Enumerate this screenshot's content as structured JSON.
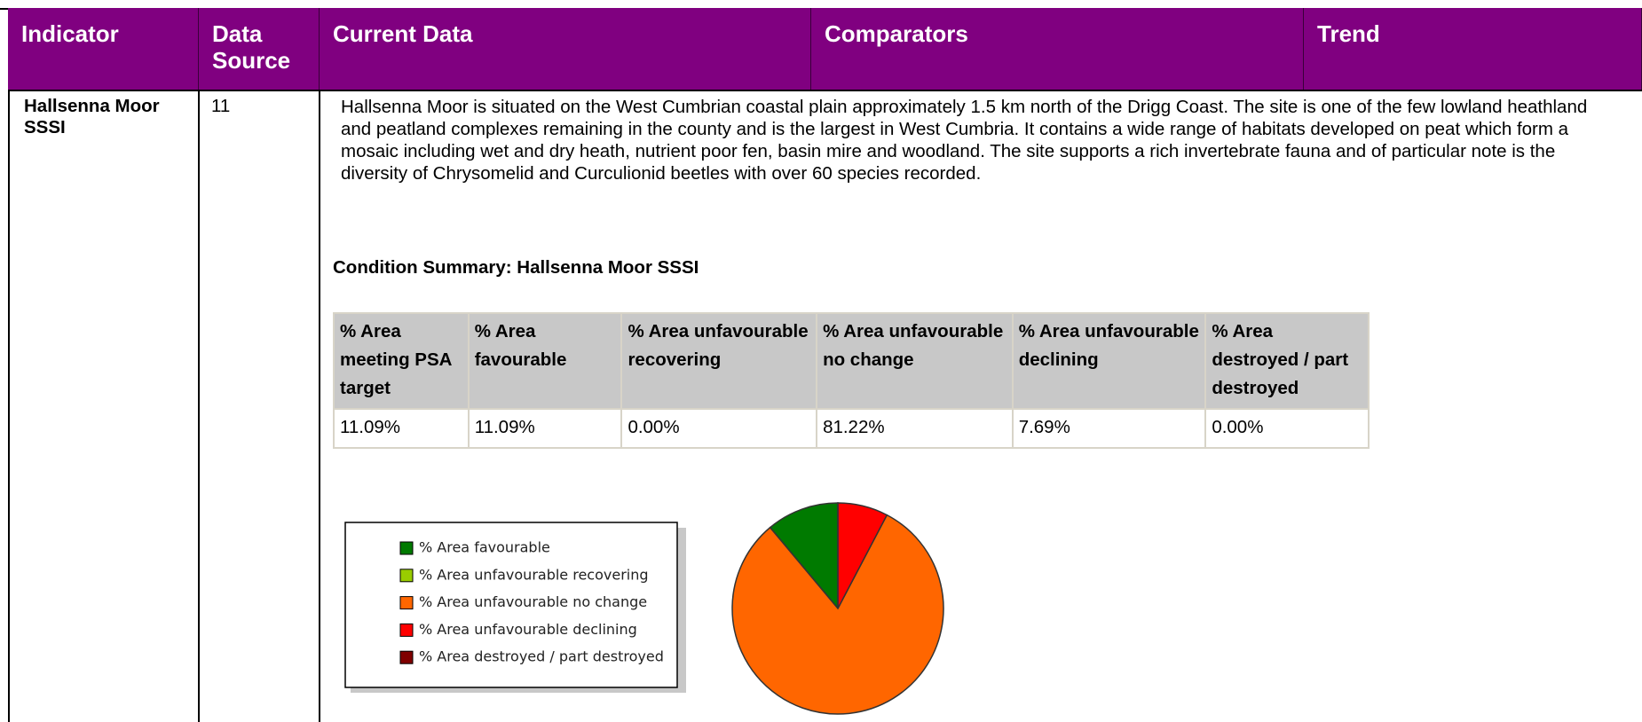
{
  "header": {
    "columns": [
      "Indicator",
      "Data Source",
      "Current Data",
      "Comparators",
      "Trend"
    ]
  },
  "row": {
    "indicator": "Hallsenna Moor SSSI",
    "data_source": "11",
    "description": "Hallsenna Moor is situated on the West Cumbrian coastal plain approximately 1.5 km north of the Drigg Coast. The site is one of the few lowland heathland and peatland complexes remaining in the county and is the largest in West Cumbria. It contains a wide range of habitats developed on peat which form a mosaic including wet and dry heath, nutrient poor fen, basin mire and woodland. The site supports a rich invertebrate fauna and of particular note is the diversity of Chrysomelid and Curculionid beetles with over 60 species recorded.",
    "summary_title": "Condition Summary: Hallsenna Moor SSSI",
    "table": {
      "headers": [
        "% Area meeting PSA target",
        "% Area favourable",
        "% Area unfavourable recovering",
        "% Area unfavourable no change",
        "% Area unfavourable declining",
        "% Area destroyed / part destroyed"
      ],
      "rows": [
        [
          "11.09%",
          "11.09%",
          "0.00%",
          "81.22%",
          "7.69%",
          "0.00%"
        ]
      ]
    }
  },
  "chart_data": {
    "type": "pie",
    "categories": [
      "% Area favourable",
      "% Area unfavourable recovering",
      "% Area unfavourable no change",
      "% Area unfavourable declining",
      "% Area destroyed / part destroyed"
    ],
    "values": [
      11.09,
      0,
      81.22,
      7.69,
      0
    ],
    "colors": [
      "#007a00",
      "#99cc00",
      "#ff6600",
      "#ff0000",
      "#800000"
    ],
    "direction": "counterclockwise"
  }
}
